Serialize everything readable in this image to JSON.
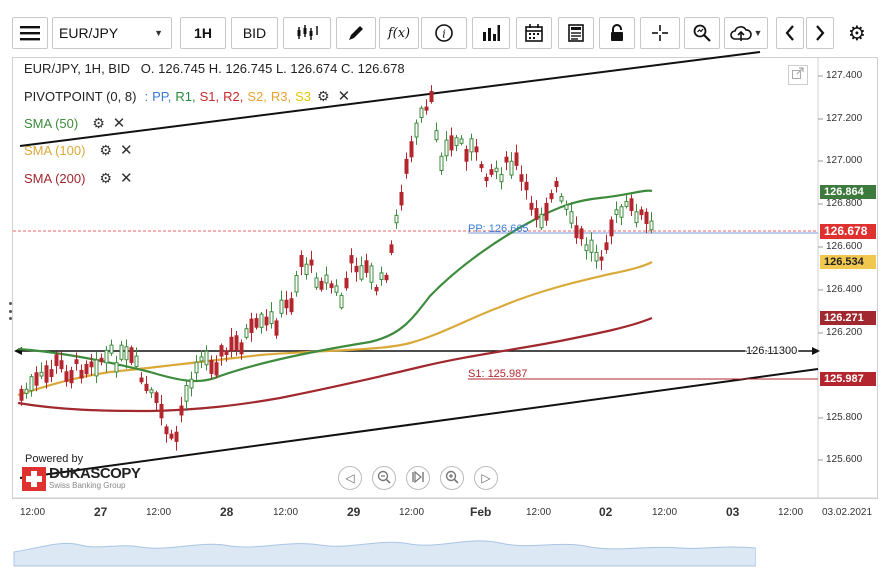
{
  "toolbar": {
    "symbol": "EUR/JPY",
    "timeframe": "1H",
    "price_type": "BID"
  },
  "legend": {
    "ohlc": "EUR/JPY, 1H, BID   O. 126.745 H. 126.745 L. 126.674 C. 126.678",
    "pivot_name": "PIVOTPOINT (0, 8)",
    "pivot_sep": ":",
    "pivot_items": [
      {
        "label": "PP,",
        "color": "#3a7bd5"
      },
      {
        "label": "R1,",
        "color": "#2b8a3e"
      },
      {
        "label": "S1,",
        "color": "#c92a2a"
      },
      {
        "label": "R2,",
        "color": "#c92a2a"
      },
      {
        "label": "S2,",
        "color": "#e8a12e"
      },
      {
        "label": "R3,",
        "color": "#e8a12e"
      },
      {
        "label": "S3",
        "color": "#e6c800"
      }
    ],
    "indicators": [
      {
        "label": "SMA (50)",
        "color": "#3d8b3d"
      },
      {
        "label": "SMA (100)",
        "color": "#d9a93a"
      },
      {
        "label": "SMA (200)",
        "color": "#a0282e"
      }
    ]
  },
  "chart_data": {
    "type": "line",
    "title": "EUR/JPY, 1H, BID",
    "ohlc_last": {
      "open": 126.745,
      "high": 126.745,
      "low": 126.674,
      "close": 126.678
    },
    "y_ticks": [
      "127.400",
      "127.200",
      "127.000",
      "126.800",
      "126.600",
      "126.400",
      "126.200",
      "125.800",
      "125.600"
    ],
    "x_ticks": [
      {
        "label": "12:00",
        "bold": false
      },
      {
        "label": "27",
        "bold": true
      },
      {
        "label": "12:00",
        "bold": false
      },
      {
        "label": "28",
        "bold": true
      },
      {
        "label": "12:00",
        "bold": false
      },
      {
        "label": "29",
        "bold": true
      },
      {
        "label": "12:00",
        "bold": false
      },
      {
        "label": "Feb",
        "bold": true
      },
      {
        "label": "12:00",
        "bold": false
      },
      {
        "label": "02",
        "bold": true
      },
      {
        "label": "12:00",
        "bold": false
      },
      {
        "label": "03",
        "bold": true
      },
      {
        "label": "12:00",
        "bold": false
      },
      {
        "label": "03.02.2021",
        "bold": false
      }
    ],
    "price_tags": [
      {
        "value": "126.864",
        "color": "#3d7a3d"
      },
      {
        "value": "126.678",
        "color": "#e03131"
      },
      {
        "value": "126.534",
        "color": "#d9a93a"
      },
      {
        "value": "126.271",
        "color": "#a0282e"
      },
      {
        "value": "125.987",
        "color": "#b3262d"
      }
    ],
    "annotations": {
      "pp": "PP: 126.665",
      "s1": "S1: 125.987",
      "hline": "126.11300"
    }
  },
  "branding": {
    "powered_by": "Powered by",
    "name": "DUKASCOPY",
    "tagline": "Swiss Banking Group"
  }
}
